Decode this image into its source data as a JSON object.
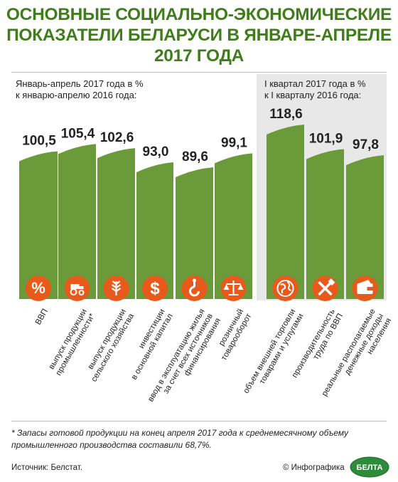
{
  "title_lines": [
    "ОСНОВНЫЕ СОЦИАЛЬНО-ЭКОНОМИЧЕСКИЕ",
    "ПОКАЗАТЕЛИ БЕЛАРУСИ В ЯНВАРЕ-АПРЕЛЕ",
    "2017 ГОДА"
  ],
  "left_subtitle": [
    "Январь-апрель 2017 года в %",
    "к январю-апрелю 2016 года:"
  ],
  "right_subtitle": [
    "I квартал 2017 года в %",
    "к I кварталу 2016 года:"
  ],
  "colors": {
    "title": "#3f7d1b",
    "bar": "#6a9a3a",
    "bar_top": "#4e7d24",
    "icon": "#e85a1c",
    "panel": "#e8e8e8"
  },
  "chart_data": [
    {
      "type": "bar",
      "title": "Январь-апрель 2017 года в % к январю-апрелю 2016 года:",
      "categories": [
        "ВВП",
        "выпуск продукции промышленности*",
        "выпуск продукции сельского хозяйства",
        "инвестиции в основной капитал",
        "ввод в эксплуатацию жилья за счет всех источников финансирования",
        "розничный товарооборот"
      ],
      "values": [
        100.5,
        105.4,
        102.6,
        93.0,
        89.6,
        99.1
      ],
      "value_labels": [
        "100,5",
        "105,4",
        "102,6",
        "93,0",
        "89,6",
        "99,1"
      ],
      "icons": [
        "percent-icon",
        "tractor-icon",
        "wheat-icon",
        "dollar-icon",
        "crane-hook-icon",
        "scales-icon"
      ]
    },
    {
      "type": "bar",
      "title": "I квартал 2017 года в % к I кварталу 2016 года:",
      "categories": [
        "объем внешней торговли товарами и услугами",
        "производительность труда по ВВП",
        "реальные располагаемые денежные доходы населения"
      ],
      "values": [
        118.6,
        101.9,
        97.8
      ],
      "value_labels": [
        "118,6",
        "101,9",
        "97,8"
      ],
      "icons": [
        "globe-icon",
        "tools-icon",
        "wallet-icon"
      ]
    }
  ],
  "category_label_lines": [
    [
      "ВВП"
    ],
    [
      "выпуск продукции",
      "промышленности*"
    ],
    [
      "выпуск продукции",
      "сельского хозяйства"
    ],
    [
      "инвестиции",
      "в основной капитал"
    ],
    [
      "ввод в эксплуатацию жилья",
      "за счет всех источников",
      "финансирования"
    ],
    [
      "розничный",
      "товарооборот"
    ],
    [
      "объем внешней торговли",
      "товарами и услугами"
    ],
    [
      "производительность",
      "труда по ВВП"
    ],
    [
      "реальные располагаемые",
      "денежные доходы",
      "населения"
    ]
  ],
  "footnote": "* Запасы готовой продукции на конец апреля 2017 года к среднемесячному объему промышленного производства составили 68,7%.",
  "source": "Источник: Белстат.",
  "credit": "© Инфографика",
  "logo_text": "БЕЛТА"
}
